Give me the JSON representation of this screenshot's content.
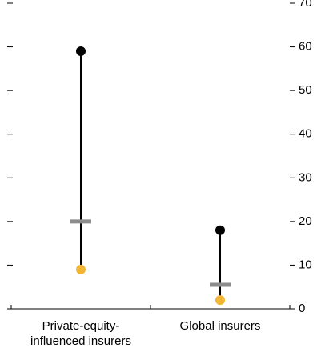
{
  "chart_data": {
    "type": "range",
    "categories": [
      "Private-equity-influenced insurers",
      "Global insurers"
    ],
    "series": [
      {
        "color": "#000000",
        "marker": "dot",
        "values": [
          59,
          18
        ]
      },
      {
        "color": "#8c8c8c",
        "marker": "bar",
        "values": [
          20,
          5.5
        ]
      },
      {
        "color": "#f2b636",
        "marker": "dot",
        "values": [
          9,
          2
        ]
      }
    ],
    "ylim": [
      0,
      70
    ],
    "yticks": [
      0,
      10,
      20,
      30,
      40,
      50,
      60,
      70
    ]
  }
}
